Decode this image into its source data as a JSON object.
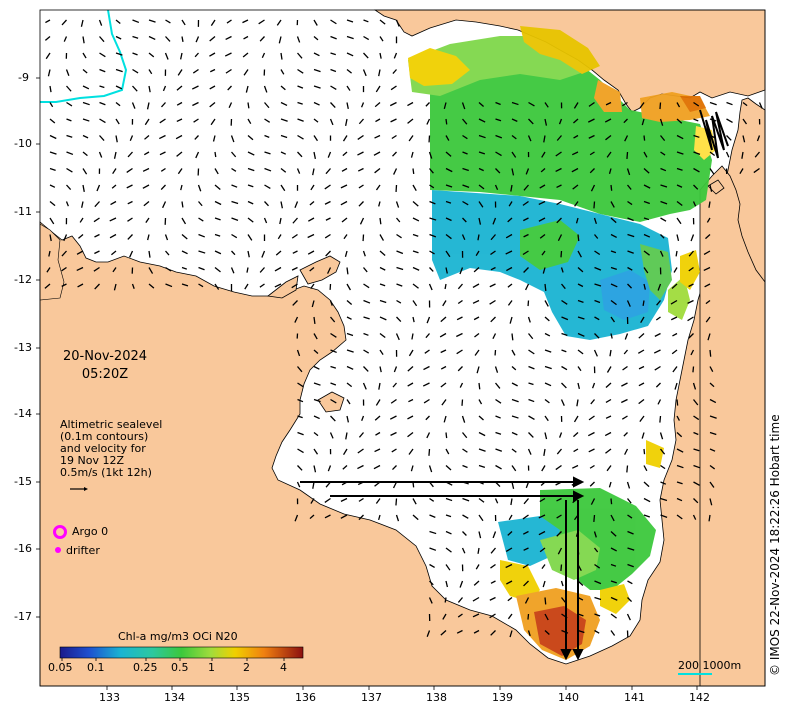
{
  "map": {
    "date": "20-Nov-2024",
    "time": "05:20Z",
    "sealevel_note": [
      "Altimetric sealevel",
      "(0.1m contours)",
      "and velocity for",
      "19 Nov 12Z",
      "0.5m/s (1kt 12h)"
    ],
    "argo_label": "Argo 0",
    "drifter_label": "drifter",
    "colorbar_title": "Chl-a mg/m3 OCi N20",
    "colorbar_ticks": [
      "0.05",
      "0.1",
      "0.25",
      "0.5",
      "1",
      "2",
      "4"
    ],
    "scale_label": "200  1000m",
    "credit": "© IMOS 22-Nov-2024 18:22:26 Hobart time",
    "x_ticks": [
      "133",
      "134",
      "135",
      "136",
      "137",
      "138",
      "139",
      "140",
      "141",
      "142"
    ],
    "y_ticks": [
      "-9",
      "-10",
      "-11",
      "-12",
      "-13",
      "-14",
      "-15",
      "-16",
      "-17"
    ],
    "colors": {
      "land": "#f9c89b",
      "ocean": "#ffffff",
      "argo": "#ff00ff",
      "shelf_line": "#00e0e0",
      "chl_green": "#3cc83c",
      "chl_cyan": "#1ab4d2",
      "chl_yellow": "#f0d000",
      "chl_orange": "#e08010",
      "chl_red": "#b02000"
    }
  }
}
